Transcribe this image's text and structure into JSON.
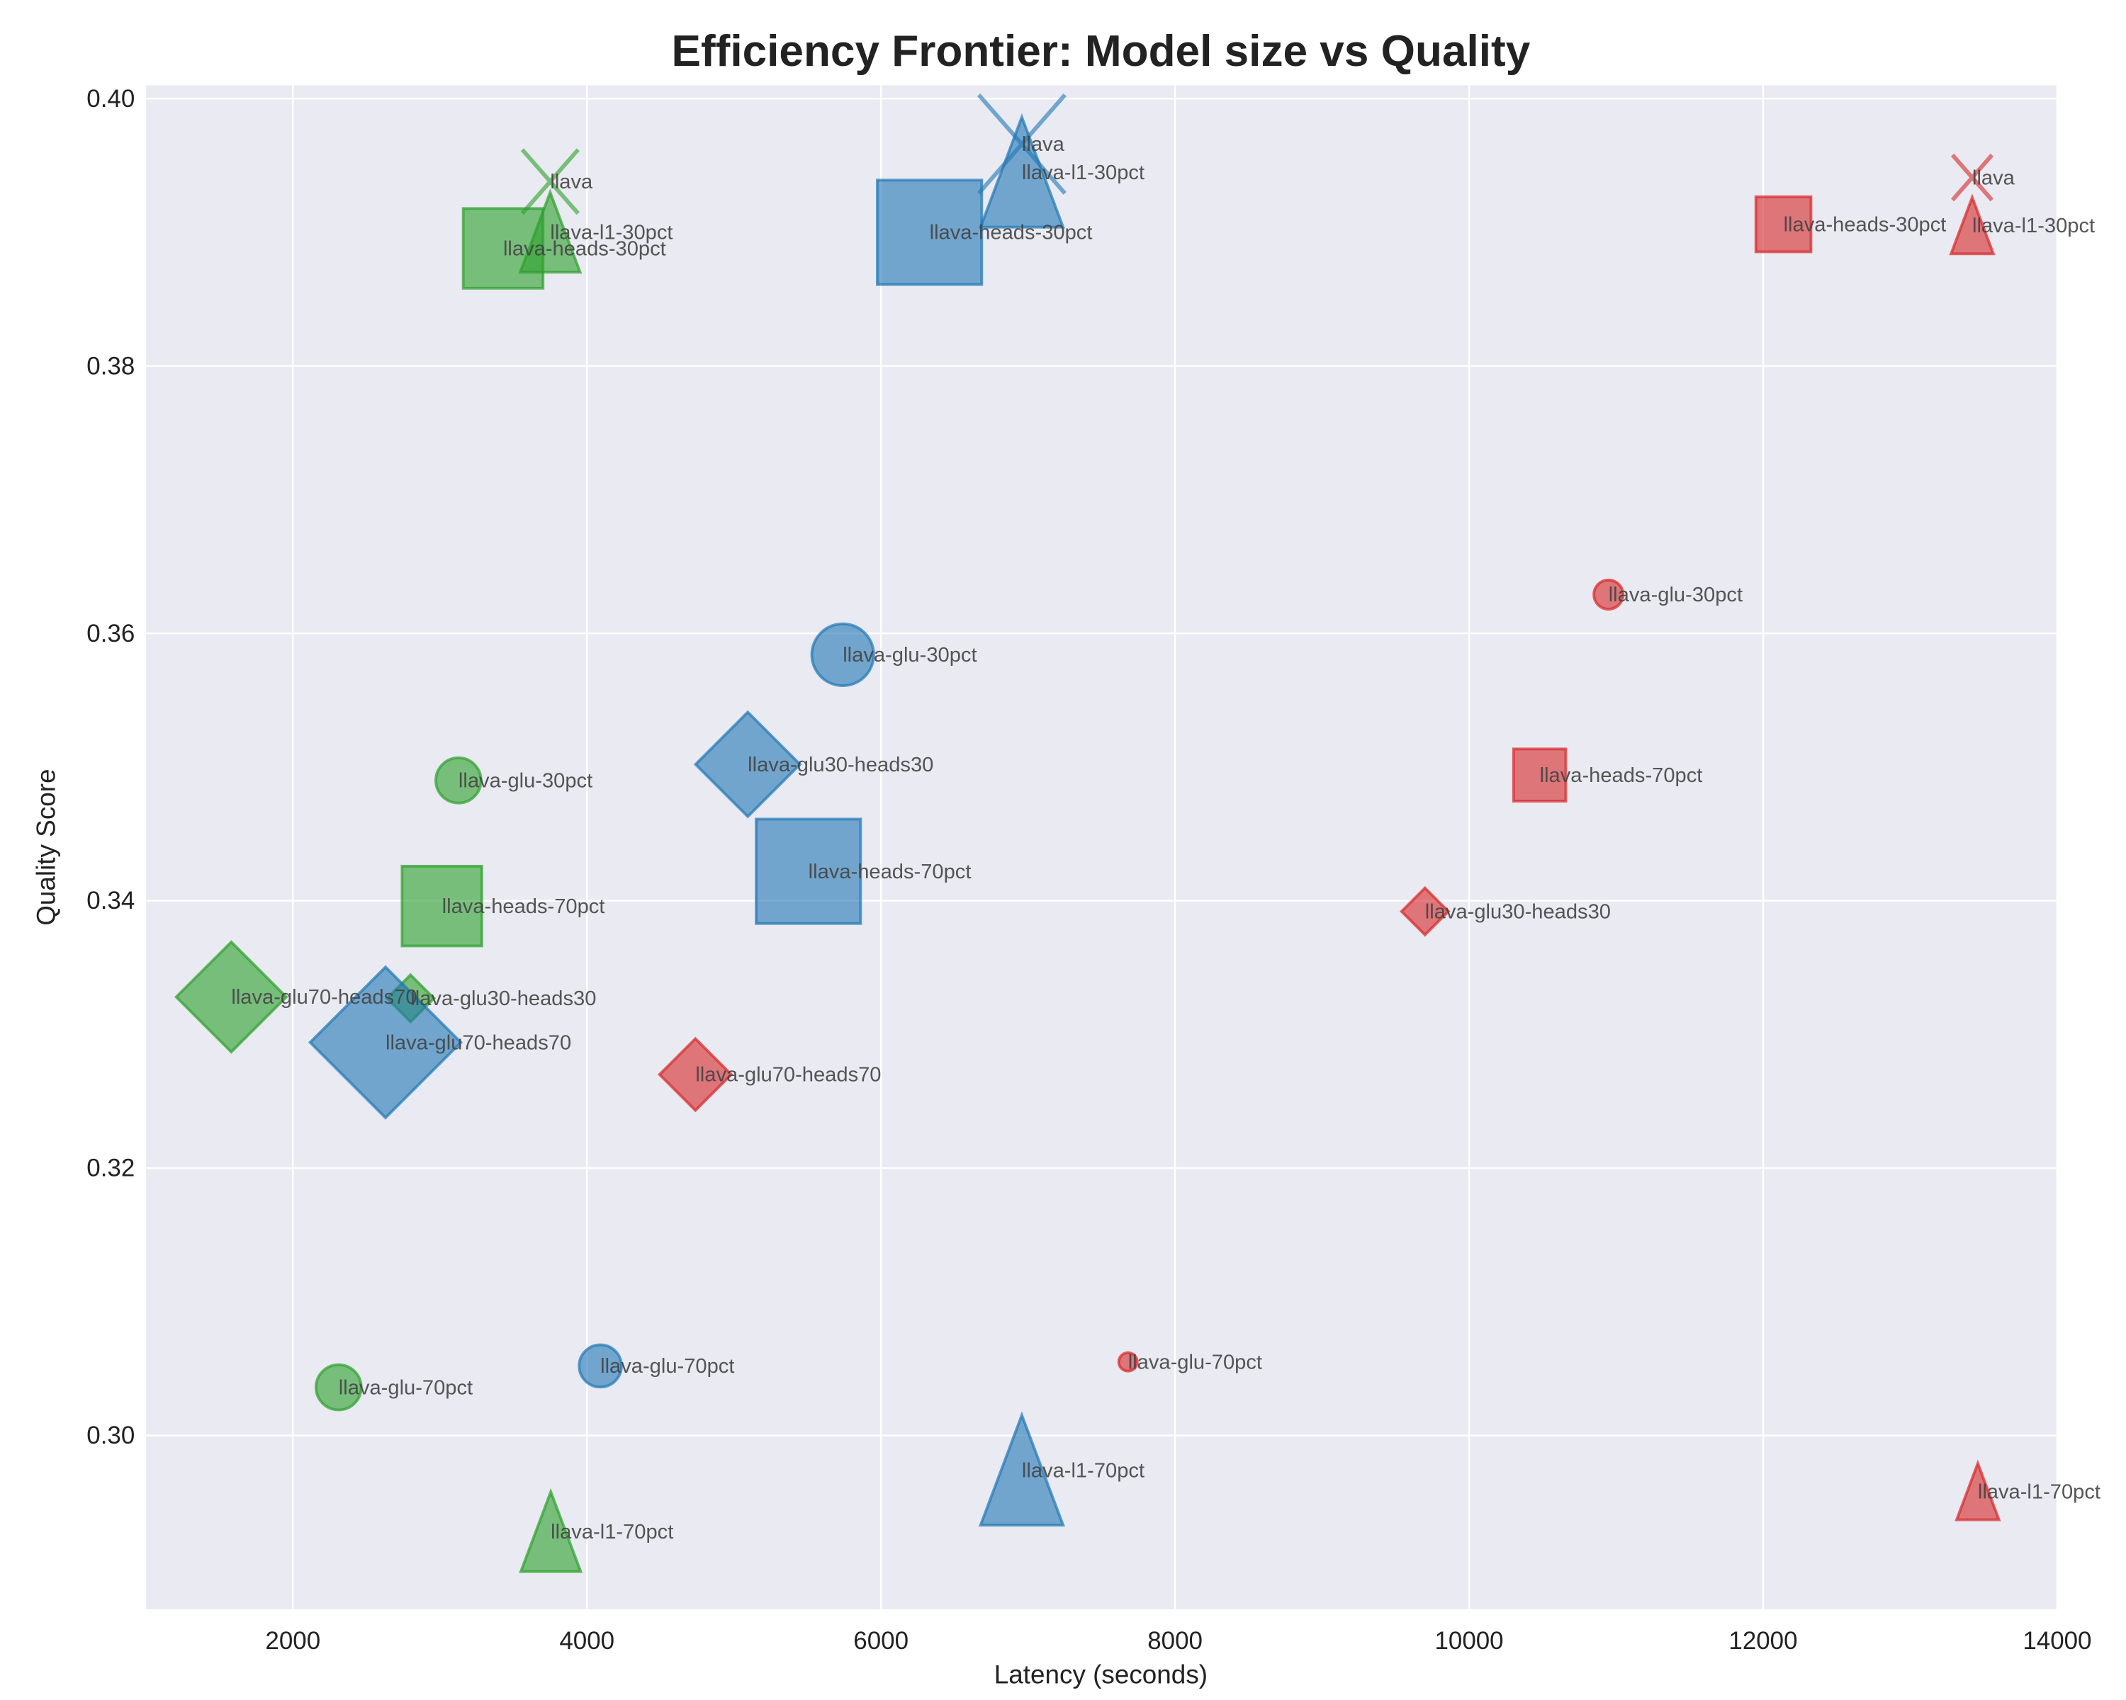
{
  "chart_data": {
    "type": "scatter",
    "title": "Efficiency Frontier: Model size vs Quality",
    "xlabel": "Latency (seconds)",
    "ylabel": "Quality Score",
    "xlim": [
      1000,
      14000
    ],
    "ylim": [
      0.287,
      0.401
    ],
    "xticks": [
      2000,
      4000,
      6000,
      8000,
      10000,
      12000,
      14000
    ],
    "yticks": [
      0.3,
      0.32,
      0.34,
      0.36,
      0.38,
      0.4
    ],
    "grid": true,
    "background": "#eaeaf2",
    "marker_shapes": {
      "llava": "x",
      "l1": "triangle",
      "heads": "square",
      "glu": "circle",
      "glu-heads": "diamond"
    },
    "series": [
      {
        "color": "#2ca02c",
        "points": [
          {
            "label": "llava",
            "x": 3750,
            "y": 0.3938,
            "marker": "x",
            "size": 840
          },
          {
            "label": "llava-l1-30pct",
            "x": 3750,
            "y": 0.39,
            "marker": "triangle",
            "size": 840
          },
          {
            "label": "llava-heads-30pct",
            "x": 3430,
            "y": 0.3888,
            "marker": "square",
            "size": 840
          },
          {
            "label": "llava-glu-30pct",
            "x": 3126,
            "y": 0.349,
            "marker": "circle",
            "size": 480
          },
          {
            "label": "llava-heads-70pct",
            "x": 3014,
            "y": 0.3396,
            "marker": "square",
            "size": 840
          },
          {
            "label": "llava-glu70-heads70",
            "x": 1581,
            "y": 0.3328,
            "marker": "diamond",
            "size": 1600
          },
          {
            "label": "llava-glu30-heads30",
            "x": 2800,
            "y": 0.3327,
            "marker": "diamond",
            "size": 290
          },
          {
            "label": "llava-glu-70pct",
            "x": 2311,
            "y": 0.3036,
            "marker": "circle",
            "size": 480
          },
          {
            "label": "llava-l1-70pct",
            "x": 3754,
            "y": 0.2928,
            "marker": "triangle",
            "size": 840
          }
        ]
      },
      {
        "color": "#1f77b4",
        "points": [
          {
            "label": "llava",
            "x": 6958,
            "y": 0.3966,
            "marker": "x",
            "size": 2000
          },
          {
            "label": "llava-l1-30pct",
            "x": 6958,
            "y": 0.3945,
            "marker": "triangle",
            "size": 1600
          },
          {
            "label": "llava-heads-30pct",
            "x": 6330,
            "y": 0.39,
            "marker": "square",
            "size": 1440
          },
          {
            "label": "llava-glu-30pct",
            "x": 5740,
            "y": 0.3584,
            "marker": "circle",
            "size": 900
          },
          {
            "label": "llava-glu30-heads30",
            "x": 5094,
            "y": 0.3502,
            "marker": "diamond",
            "size": 1440
          },
          {
            "label": "llava-heads-70pct",
            "x": 5506,
            "y": 0.3422,
            "marker": "square",
            "size": 1440
          },
          {
            "label": "llava-glu70-heads70",
            "x": 2630,
            "y": 0.3294,
            "marker": "diamond",
            "size": 3000
          },
          {
            "label": "llava-glu-70pct",
            "x": 4091,
            "y": 0.3052,
            "marker": "circle",
            "size": 420
          },
          {
            "label": "llava-l1-70pct",
            "x": 6958,
            "y": 0.2974,
            "marker": "triangle",
            "size": 1600
          }
        ]
      },
      {
        "color": "#d62728",
        "points": [
          {
            "label": "llava",
            "x": 13422,
            "y": 0.3941,
            "marker": "x",
            "size": 420
          },
          {
            "label": "llava-l1-30pct",
            "x": 13422,
            "y": 0.3905,
            "marker": "triangle",
            "size": 420
          },
          {
            "label": "llava-heads-30pct",
            "x": 12138,
            "y": 0.3906,
            "marker": "square",
            "size": 400
          },
          {
            "label": "llava-glu-30pct",
            "x": 10948,
            "y": 0.3629,
            "marker": "circle",
            "size": 200
          },
          {
            "label": "llava-heads-70pct",
            "x": 10480,
            "y": 0.3494,
            "marker": "square",
            "size": 360
          },
          {
            "label": "llava-glu30-heads30",
            "x": 9700,
            "y": 0.3392,
            "marker": "diamond",
            "size": 290
          },
          {
            "label": "llava-glu70-heads70",
            "x": 4738,
            "y": 0.327,
            "marker": "diamond",
            "size": 680
          },
          {
            "label": "llava-glu-70pct",
            "x": 7680,
            "y": 0.3055,
            "marker": "circle",
            "size": 80
          },
          {
            "label": "llava-l1-70pct",
            "x": 13460,
            "y": 0.2958,
            "marker": "triangle",
            "size": 420
          }
        ]
      }
    ]
  }
}
